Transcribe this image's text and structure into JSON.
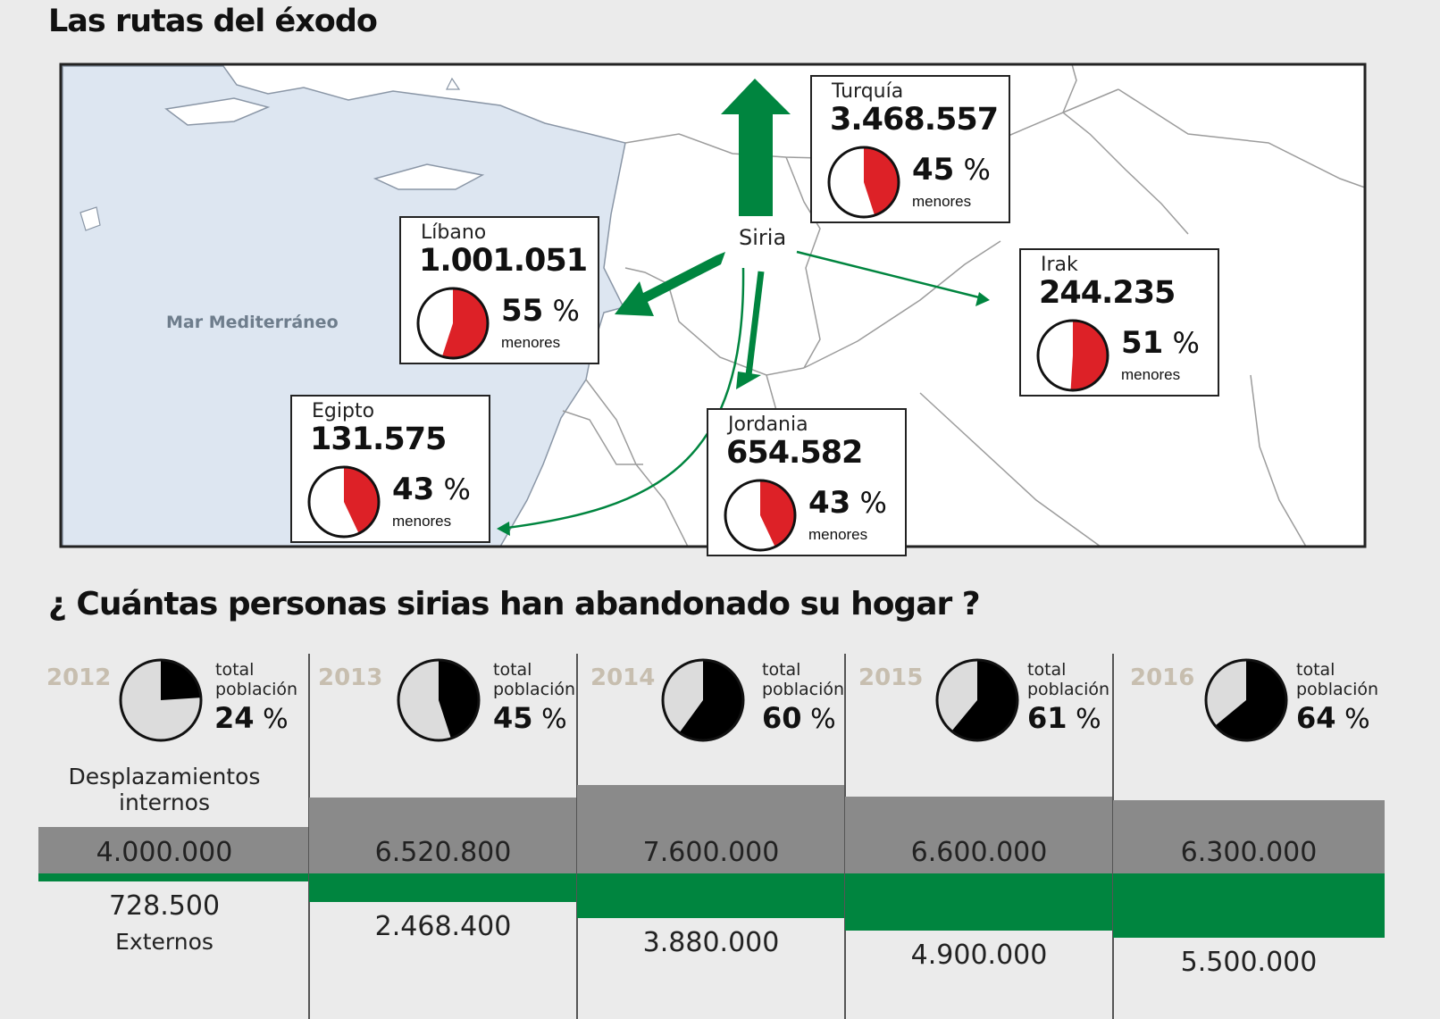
{
  "titles": {
    "map": "Las rutas del éxodo",
    "timeline": "¿ Cuántas personas sirias han abandonado su hogar ?"
  },
  "map": {
    "origin_label": "Siria",
    "sea_label": "Mar Mediterráneo",
    "sub_label": "menores",
    "colors": {
      "sea": "#dde6f1",
      "arrow": "#00853f",
      "pie_fill": "#dd2127"
    },
    "destinations": [
      {
        "name": "Turquía",
        "refugees": "3.468.557",
        "minors_pct": 45
      },
      {
        "name": "Líbano",
        "refugees": "1.001.051",
        "minors_pct": 55
      },
      {
        "name": "Irak",
        "refugees": "244.235",
        "minors_pct": 51
      },
      {
        "name": "Egipto",
        "refugees": "131.575",
        "minors_pct": 43
      },
      {
        "name": "Jordania",
        "refugees": "654.582",
        "minors_pct": 43
      }
    ]
  },
  "timeline": {
    "total_label_1": "total",
    "total_label_2": "población",
    "internal_label": "Desplazamientos internos",
    "external_label": "Externos",
    "colors": {
      "internal": "#8a8a8a",
      "external": "#00853f",
      "pie_fill": "#000000",
      "pie_empty": "#dcdcdc"
    }
  },
  "chart_data": {
    "type": "bar",
    "categories": [
      "2012",
      "2013",
      "2014",
      "2015",
      "2016"
    ],
    "series": [
      {
        "name": "Desplazamientos internos",
        "values": [
          4000000,
          6520800,
          7600000,
          6600000,
          6300000
        ],
        "labels": [
          "4.000.000",
          "6.520.800",
          "7.600.000",
          "6.600.000",
          "6.300.000"
        ]
      },
      {
        "name": "Externos",
        "values": [
          728500,
          2468400,
          3880000,
          4900000,
          5500000
        ],
        "labels": [
          "728.500",
          "2.468.400",
          "3.880.000",
          "4.900.000",
          "5.500.000"
        ]
      }
    ],
    "total_population_pct": [
      24,
      45,
      60,
      61,
      64
    ]
  }
}
